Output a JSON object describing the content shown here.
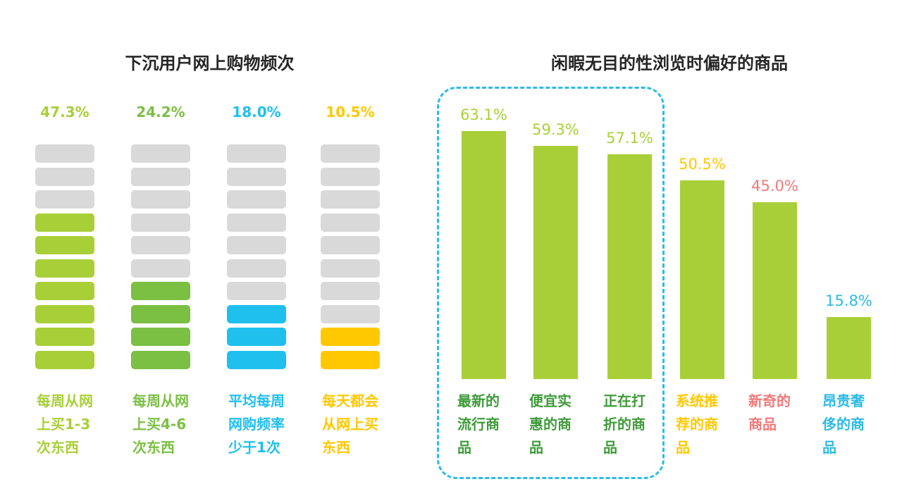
{
  "left": {
    "title": "下沉用户网上购物频次",
    "chart_data": {
      "type": "bar",
      "categories": [
        "每周从网上买1-3次东西",
        "每周从网上买4-6次东西",
        "平均每周网购频率少于1次",
        "每天都会从网上买东西"
      ],
      "values": [
        47.3,
        24.2,
        18.0,
        10.5
      ],
      "value_labels": [
        "47.3%",
        "24.2%",
        "18.0%",
        "10.5%"
      ],
      "colors": [
        "#a9cf38",
        "#7bbf43",
        "#1fc0ee",
        "#ffc800"
      ],
      "filled_segments": [
        7,
        4,
        3,
        2
      ],
      "total_segments": 10,
      "empty_color": "#d9d9d9"
    }
  },
  "right": {
    "title": "闲暇无目的性浏览时偏好的商品",
    "chart_data": {
      "type": "bar",
      "categories": [
        "最新的流行商品",
        "便宜实惠的商品",
        "正在打折的商品",
        "系统推荐的商品",
        "新奇的商品",
        "昂贵奢侈的商品"
      ],
      "values": [
        63.1,
        59.3,
        57.1,
        50.5,
        45.0,
        15.8
      ],
      "value_labels": [
        "63.1%",
        "59.3%",
        "57.1%",
        "50.5%",
        "45.0%",
        "15.8%"
      ],
      "label_colors": [
        "#3f9b3a",
        "#3f9b3a",
        "#3f9b3a",
        "#ffc800",
        "#f07a7a",
        "#2dbbe6"
      ],
      "bar_color": "#a9cf38",
      "highlight_box_color": "#2dbbe6"
    }
  }
}
